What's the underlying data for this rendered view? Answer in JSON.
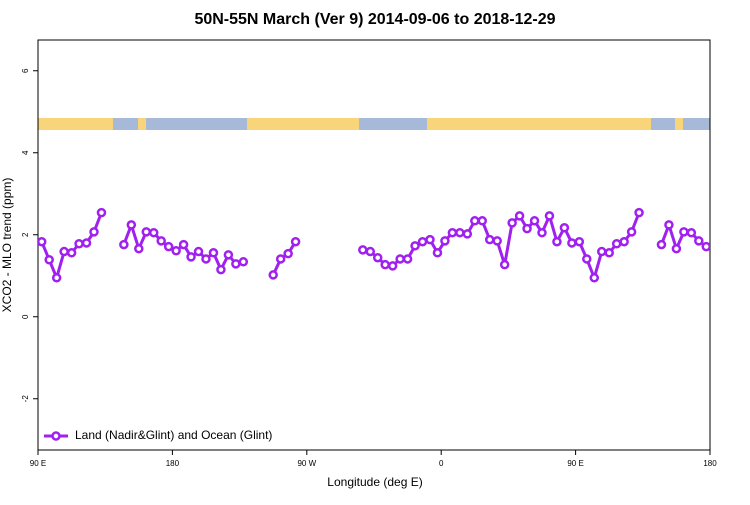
{
  "chart_data": {
    "type": "line",
    "title": "50N-55N March (Ver 9)   2014-09-06 to 2018-12-29",
    "x_label": "Longitude (deg E)",
    "y_label": "XCO2 - MLO trend (ppm)",
    "xlim": [
      90,
      540
    ],
    "ylim": [
      -3.25,
      6.75
    ],
    "xticks": [
      {
        "value": 90,
        "label": "90 E"
      },
      {
        "value": 180,
        "label": "180"
      },
      {
        "value": 270,
        "label": "90 W"
      },
      {
        "value": 360,
        "label": "0"
      },
      {
        "value": 450,
        "label": "90 E"
      },
      {
        "value": 540,
        "label": "180"
      }
    ],
    "yticks": [
      -2,
      0,
      2,
      4,
      6
    ],
    "legend": "bottom-left",
    "x": [
      92.5,
      97.5,
      102.5,
      107.5,
      112.5,
      117.5,
      122.5,
      127.5,
      132.5,
      142.5,
      147.5,
      152.5,
      157.5,
      162.5,
      167.5,
      172.5,
      177.5,
      182.5,
      187.5,
      192.5,
      197.5,
      202.5,
      207.5,
      212.5,
      217.5,
      222.5,
      227.5,
      237.5,
      247.5,
      252.5,
      257.5,
      262.5,
      267.5,
      307.5,
      312.5,
      317.5,
      322.5,
      327.5,
      332.5,
      337.5,
      342.5,
      347.5,
      352.5,
      357.5,
      362.5,
      367.5,
      372.5,
      377.5,
      382.5,
      387.5,
      392.5,
      397.5,
      402.5,
      407.5,
      412.5,
      417.5,
      422.5,
      427.5,
      432.5,
      437.5,
      442.5,
      447.5,
      452.5,
      457.5,
      462.5,
      467.5,
      472.5,
      477.5,
      482.5,
      487.5,
      492.5,
      502.5,
      507.5,
      512.5,
      517.5,
      522.5,
      527.5,
      532.5,
      537.5
    ],
    "series": [
      {
        "name": "Land (Nadir&Glint) and Ocean (Glint)",
        "color": "#a020f0",
        "values": [
          1.83,
          1.39,
          0.95,
          1.59,
          1.56,
          1.78,
          1.8,
          2.07,
          2.54,
          null,
          1.76,
          2.24,
          1.66,
          2.07,
          2.05,
          1.85,
          1.71,
          1.61,
          1.76,
          1.46,
          1.59,
          1.41,
          1.56,
          1.15,
          1.51,
          1.29,
          1.34,
          null,
          1.02,
          1.41,
          1.54,
          1.83,
          null,
          1.63,
          1.59,
          1.44,
          1.27,
          1.24,
          1.41,
          1.41,
          1.73,
          1.83,
          1.88,
          1.56,
          1.85,
          2.05,
          2.05,
          2.02,
          2.34,
          2.34,
          1.88,
          1.85,
          1.27,
          2.29,
          2.46,
          2.15,
          2.34,
          2.05,
          2.46,
          1.83,
          2.17,
          1.8,
          1.83,
          1.41,
          0.95,
          1.59,
          1.56,
          1.78,
          1.83,
          2.07,
          2.54,
          null,
          1.76,
          2.24,
          1.66,
          2.07,
          2.05,
          1.85,
          1.71
        ]
      }
    ]
  }
}
